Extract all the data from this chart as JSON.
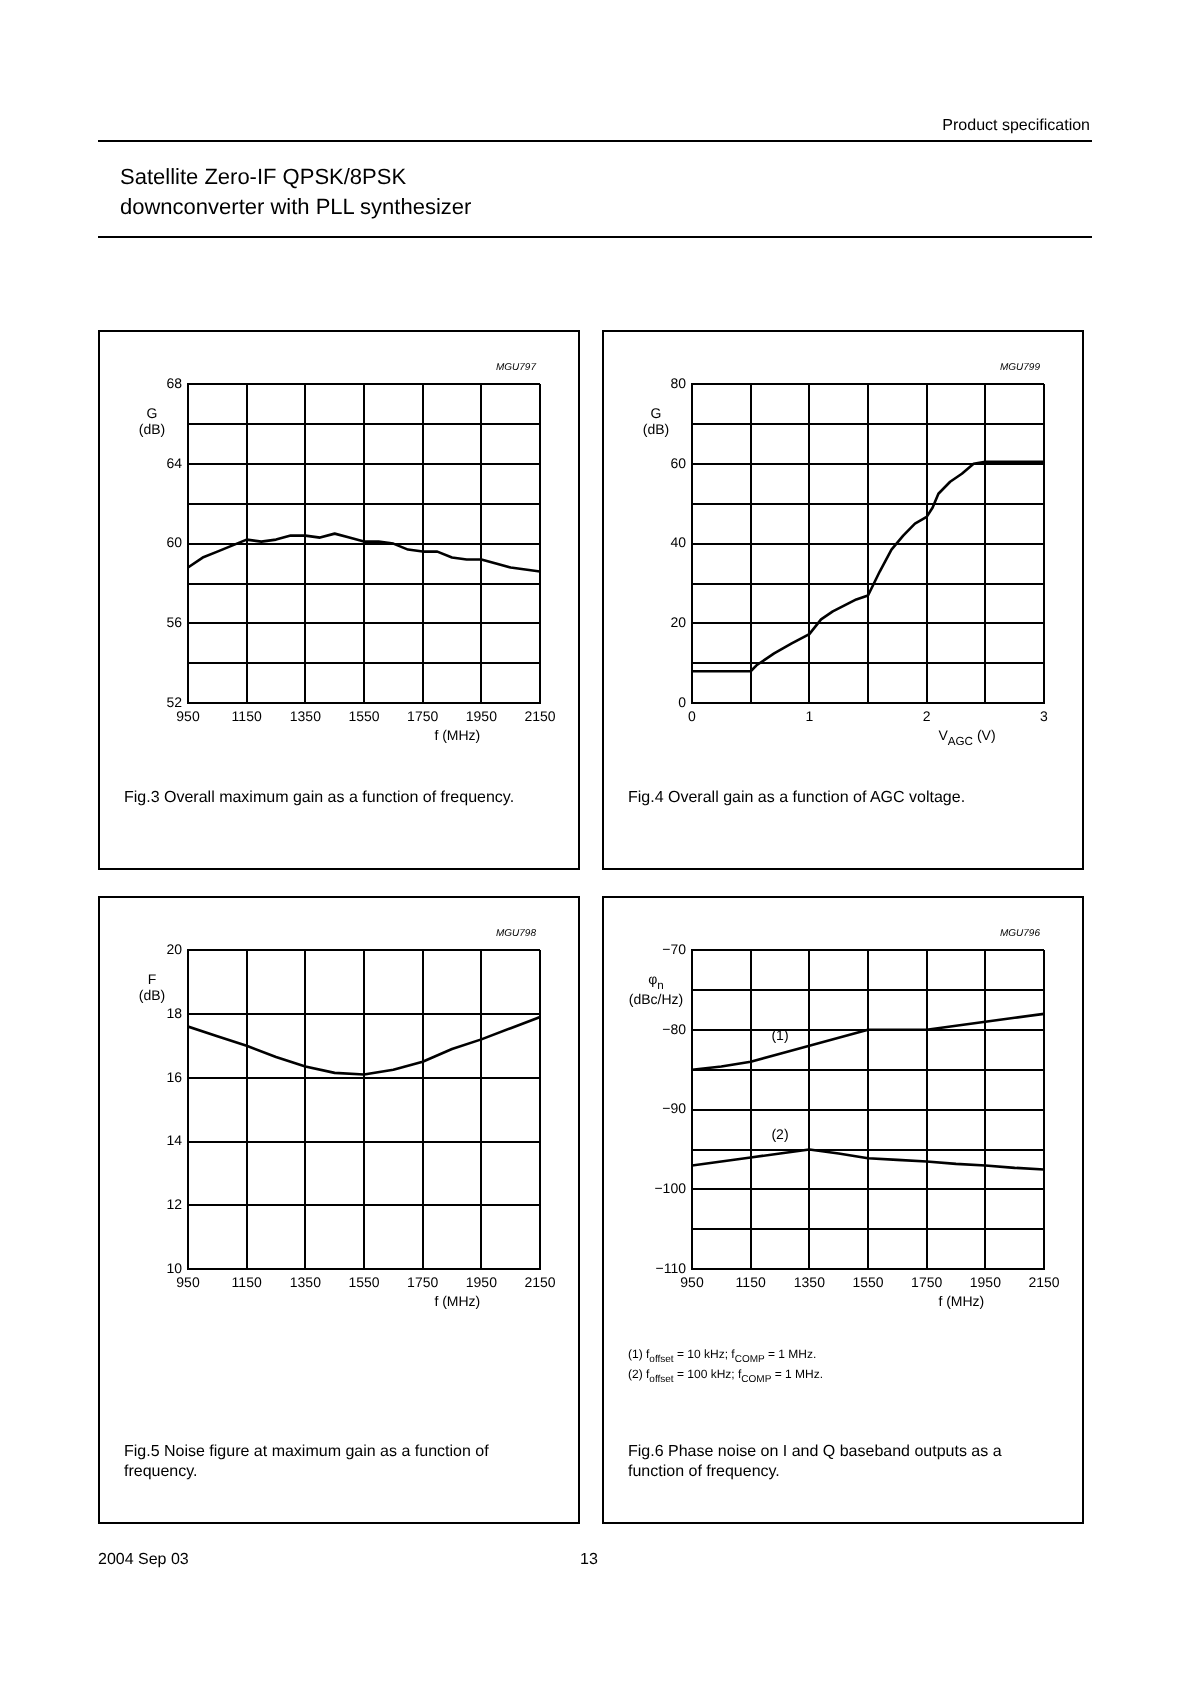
{
  "chart_data": [
    {
      "type": "other",
      "title": "Satellite Zero-IF QPSK/8PSK\ndownconverter with PLL synthesizer",
      "subtitle": "Product specification",
      "annotations": [
        "2004 Sep 03",
        "13"
      ]
    },
    {
      "type": "line",
      "title": "Fig.3  Overall maximum gain as a function of frequency.",
      "xlabel": "f (MHz)",
      "ylabel": "G\n(dB)",
      "annotations": [
        "MGU797"
      ],
      "series": [
        {
          "color": "#000000",
          "x": [
            950,
            1000,
            1050,
            1100,
            1150,
            1200,
            1250,
            1300,
            1350,
            1400,
            1450,
            1500,
            1550,
            1600,
            1650,
            1700,
            1750,
            1800,
            1850,
            1900,
            1950,
            2000,
            2050,
            2100,
            2150
          ],
          "values": [
            58.8,
            59.3,
            59.6,
            59.9,
            60.2,
            60.1,
            60.2,
            60.4,
            60.4,
            60.3,
            60.5,
            60.3,
            60.1,
            60.1,
            60.0,
            59.7,
            59.6,
            59.6,
            59.3,
            59.2,
            59.2,
            59.0,
            58.8,
            58.7,
            58.6
          ]
        }
      ],
      "xlim": [
        950,
        2150
      ],
      "xticks": [
        950,
        1150,
        1350,
        1550,
        1750,
        1950,
        2150
      ],
      "ylim": [
        52,
        68
      ],
      "yticks": [
        52,
        {
          "value": 54,
          "label": null
        },
        56,
        {
          "value": 58,
          "label": null
        },
        60,
        {
          "value": 62,
          "label": null
        },
        64,
        {
          "value": 66,
          "label": null
        },
        68
      ],
      "grid": true
    },
    {
      "type": "line",
      "title": "Fig.4  Overall gain as a function of AGC voltage.",
      "xlabel": "V$_{AGC}$ (V)",
      "ylabel": "G\n(dB)",
      "annotations": [
        "MGU799"
      ],
      "series": [
        {
          "color": "#000000",
          "x": [
            0,
            0.5,
            0.55,
            0.7,
            0.85,
            1.0,
            1.1,
            1.2,
            1.3,
            1.4,
            1.5,
            1.6,
            1.7,
            1.8,
            1.9,
            2.0,
            2.05,
            2.1,
            2.2,
            2.3,
            2.4,
            2.5,
            3.0
          ],
          "values": [
            8,
            8,
            9.5,
            12.5,
            15,
            17.3,
            21,
            23,
            24.5,
            26,
            27,
            33,
            38.5,
            42,
            45,
            46.7,
            49,
            52.5,
            55.5,
            57.5,
            60,
            60.5,
            60.5
          ]
        }
      ],
      "xlim": [
        0,
        3
      ],
      "xticks": [
        0,
        {
          "value": 0.5,
          "label": null
        },
        1,
        {
          "value": 1.5,
          "label": null
        },
        2,
        {
          "value": 2.5,
          "label": null
        },
        3
      ],
      "ylim": [
        0,
        80
      ],
      "yticks": [
        0,
        {
          "value": 10,
          "label": null
        },
        20,
        {
          "value": 30,
          "label": null
        },
        40,
        {
          "value": 50,
          "label": null
        },
        60,
        {
          "value": 70,
          "label": null
        },
        80
      ],
      "grid": true
    },
    {
      "type": "line",
      "title": "Fig.5  Noise figure at maximum gain as a function of frequency.",
      "xlabel": "f (MHz)",
      "ylabel": "F\n(dB)",
      "annotations": [
        "MGU798"
      ],
      "series": [
        {
          "color": "#000000",
          "x": [
            950,
            1050,
            1150,
            1250,
            1350,
            1450,
            1550,
            1650,
            1750,
            1850,
            1950,
            2050,
            2150
          ],
          "values": [
            17.6,
            17.3,
            17.0,
            16.65,
            16.35,
            16.15,
            16.1,
            16.25,
            16.5,
            16.9,
            17.2,
            17.55,
            17.9
          ]
        }
      ],
      "xlim": [
        950,
        2150
      ],
      "xticks": [
        950,
        1150,
        1350,
        1550,
        1750,
        1950,
        2150
      ],
      "ylim": [
        10,
        20
      ],
      "yticks": [
        10,
        12,
        14,
        16,
        18,
        20
      ],
      "grid": true
    },
    {
      "type": "line",
      "title": "Fig.6  Phase noise on I and Q baseband outputs as a function of frequency.",
      "xlabel": "f (MHz)",
      "ylabel": "φ$_{n}$\n(dBc/Hz)",
      "annotations": [
        "MGU796",
        "(1)  f$_{offset}$ = 10 kHz; f$_{COMP}$ = 1 MHz.",
        "(2)  f$_{offset}$ = 100 kHz; f$_{COMP}$ = 1 MHz."
      ],
      "series": [
        {
          "name": "(1)",
          "color": "#000000",
          "x": [
            950,
            1050,
            1150,
            1250,
            1350,
            1450,
            1550,
            1650,
            1750,
            1850,
            1950,
            2050,
            2150
          ],
          "values": [
            -85,
            -84.6,
            -84,
            -83,
            -82,
            -81,
            -80,
            -80,
            -80,
            -79.5,
            -79,
            -78.5,
            -78
          ]
        },
        {
          "name": "(2)",
          "color": "#000000",
          "x": [
            950,
            1050,
            1150,
            1250,
            1350,
            1450,
            1550,
            1650,
            1750,
            1850,
            1950,
            2050,
            2150
          ],
          "values": [
            -97,
            -96.5,
            -96,
            -95.5,
            -95,
            -95.5,
            -96.1,
            -96.3,
            -96.5,
            -96.8,
            -97,
            -97.3,
            -97.5
          ]
        }
      ],
      "xlim": [
        950,
        2150
      ],
      "xticks": [
        950,
        1150,
        1350,
        1550,
        1750,
        1950,
        2150
      ],
      "ylim": [
        -110,
        -70
      ],
      "yticks": [
        {
          "value": -110,
          "label": "−110"
        },
        {
          "value": -105,
          "label": null
        },
        {
          "value": -100,
          "label": "−100"
        },
        {
          "value": -95,
          "label": null
        },
        {
          "value": -90,
          "label": "−90"
        },
        {
          "value": -85,
          "label": null
        },
        {
          "value": -80,
          "label": "−80"
        },
        {
          "value": -75,
          "label": null
        },
        {
          "value": -70,
          "label": "−70"
        }
      ],
      "grid": true
    }
  ]
}
